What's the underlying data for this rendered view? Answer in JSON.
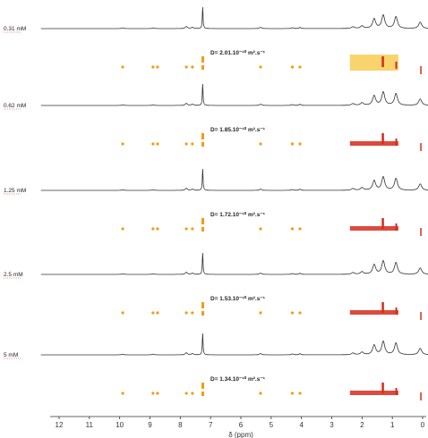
{
  "chart_data": {
    "type": "line",
    "subtype": "stacked 1H NMR spectra with DOSY diffusion maps",
    "xlabel": "δ (ppm)",
    "x_ticks": [
      12,
      11,
      10,
      9,
      8,
      7,
      6,
      5,
      4,
      3,
      2,
      1,
      0
    ],
    "xlim": [
      12.6,
      -0.2
    ],
    "x_reversed": true,
    "spectrum_peaks": [
      {
        "ppm": 7.26,
        "height": 1.0
      },
      {
        "ppm": 9.9,
        "height": 0.03
      },
      {
        "ppm": 8.9,
        "height": 0.03
      },
      {
        "ppm": 7.8,
        "height": 0.1
      },
      {
        "ppm": 7.6,
        "height": 0.06
      },
      {
        "ppm": 5.35,
        "height": 0.06
      },
      {
        "ppm": 4.3,
        "height": 0.04
      },
      {
        "ppm": 4.05,
        "height": 0.05
      },
      {
        "ppm": 2.3,
        "height": 0.08
      },
      {
        "ppm": 2.0,
        "height": 0.12
      },
      {
        "ppm": 1.6,
        "height": 0.45
      },
      {
        "ppm": 1.3,
        "height": 0.62
      },
      {
        "ppm": 0.88,
        "height": 0.55
      },
      {
        "ppm": 0.08,
        "height": 0.3
      }
    ],
    "series": [
      {
        "concentration": "0.31 mM",
        "diffusion_coefficient": "D= 2.01.10⁻¹⁰ m².s⁻¹"
      },
      {
        "concentration": "0.62 mM",
        "diffusion_coefficient": "D= 1.85.10⁻¹⁰ m².s⁻¹"
      },
      {
        "concentration": "1.25 mM",
        "diffusion_coefficient": "D= 1.72.10⁻¹⁰ m².s⁻¹"
      },
      {
        "concentration": "2.5 mM",
        "diffusion_coefficient": "D= 1.53.10⁻¹⁰ m².s⁻¹"
      },
      {
        "concentration": "5 mM",
        "diffusion_coefficient": "D= 1.34.10⁻¹⁰ m².s⁻¹"
      }
    ],
    "dosy_colors": {
      "low": "#f7c948",
      "mid": "#f39c12",
      "high": "#d62c1a"
    },
    "grid": false
  }
}
